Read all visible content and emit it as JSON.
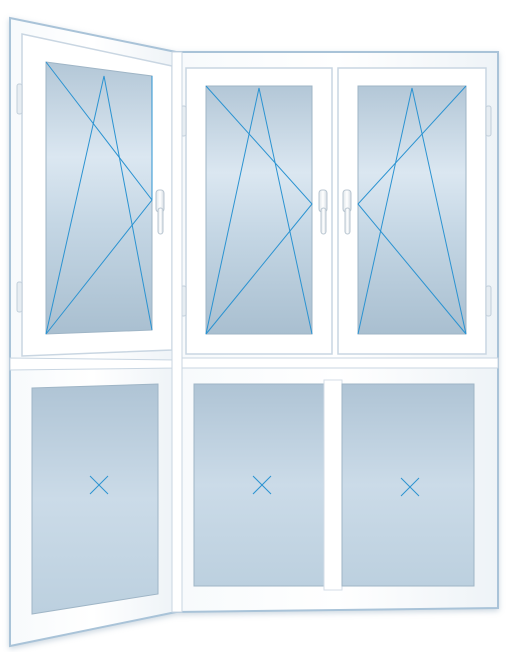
{
  "illustration": {
    "subject": "balcony-window-configuration",
    "colors": {
      "frame": "#ffffff",
      "frame_edge": "#c9d6e2",
      "outer_edge": "#a9c3d8",
      "glass_light": "#dbe7f1",
      "glass_mid": "#c2d4e2",
      "glass_dark": "#adc3d4",
      "opening_lines": "#2b93d1",
      "handle": "#f4f6f8"
    },
    "upper_sashes": [
      {
        "id": "upper-left",
        "opening": "tilt-turn",
        "hinge": "left"
      },
      {
        "id": "upper-middle",
        "opening": "tilt-turn",
        "hinge": "left"
      },
      {
        "id": "upper-right",
        "opening": "tilt-turn",
        "hinge": "right"
      }
    ],
    "lower_panels": [
      {
        "id": "lower-left",
        "opening": "fixed"
      },
      {
        "id": "lower-middle",
        "opening": "fixed"
      },
      {
        "id": "lower-right",
        "opening": "fixed"
      }
    ]
  }
}
